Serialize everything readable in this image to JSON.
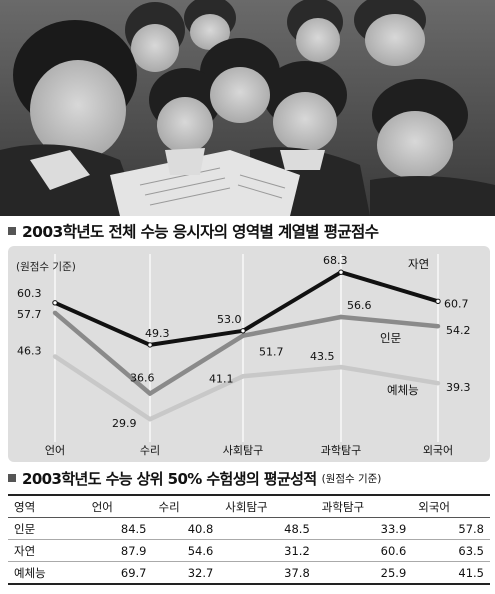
{
  "photo": {
    "icon": "students-reading-newspaper-photo"
  },
  "chart_title": "2003학년도 전체 수능 응시자의 영역별 계열별 평균점수",
  "chart_data": {
    "type": "line",
    "unit_note": "(원점수 기준)",
    "categories": [
      "언어",
      "수리",
      "사회탐구",
      "과학탐구",
      "외국어"
    ],
    "series": [
      {
        "name": "자연",
        "values": [
          60.3,
          49.3,
          53.0,
          68.3,
          60.7
        ],
        "color": "#111111"
      },
      {
        "name": "인문",
        "values": [
          57.7,
          36.6,
          51.7,
          56.6,
          54.2
        ],
        "color": "#8a8a8a"
      },
      {
        "name": "예체능",
        "values": [
          46.3,
          29.9,
          41.1,
          43.5,
          39.3
        ],
        "color": "#c8c8c8"
      }
    ],
    "data_labels": [
      [
        "60.3",
        "49.3",
        "53.0",
        "68.3",
        "60.7"
      ],
      [
        "57.7",
        "36.6",
        "51.7",
        "56.6",
        "54.2"
      ],
      [
        "46.3",
        "29.9",
        "41.1",
        "43.5",
        "39.3"
      ]
    ],
    "ylim": [
      25,
      72
    ],
    "grid": true,
    "legend": "inline-right"
  },
  "table": {
    "title": "2003학년도 수능 상위 50% 수험생의 평균성적",
    "unit": "(원점수 기준)",
    "headers": [
      "영역",
      "언어",
      "수리",
      "사회탐구",
      "과학탐구",
      "외국어"
    ],
    "rows": [
      [
        "인문",
        "84.5",
        "40.8",
        "48.5",
        "33.9",
        "57.8"
      ],
      [
        "자연",
        "87.9",
        "54.6",
        "31.2",
        "60.6",
        "63.5"
      ],
      [
        "예체능",
        "69.7",
        "32.7",
        "37.8",
        "25.9",
        "41.5"
      ]
    ]
  }
}
